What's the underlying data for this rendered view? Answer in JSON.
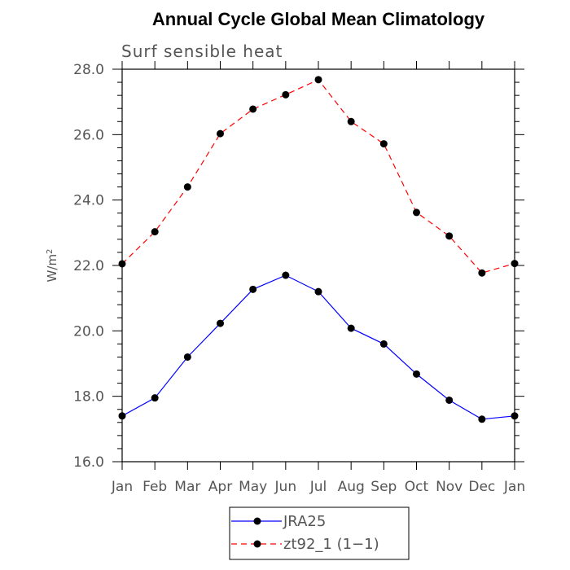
{
  "chart_data": {
    "type": "line",
    "title": "Annual Cycle Global Mean Climatology",
    "subtitle": "Surf sensible heat",
    "xlabel": "",
    "ylabel": "W/m",
    "ylabel_superscript": "2",
    "categories": [
      "Jan",
      "Feb",
      "Mar",
      "Apr",
      "May",
      "Jun",
      "Jul",
      "Aug",
      "Sep",
      "Oct",
      "Nov",
      "Dec",
      "Jan"
    ],
    "ylim": [
      16.0,
      28.0
    ],
    "y_ticks": [
      "16.0",
      "18.0",
      "20.0",
      "22.0",
      "24.0",
      "26.0",
      "28.0"
    ],
    "y_tick_values": [
      16,
      18,
      20,
      22,
      24,
      26,
      28
    ],
    "y_minor_step": 0.4,
    "grid": false,
    "legend_position": "bottom-center",
    "series": [
      {
        "name": "JRA25",
        "color": "#0000ff",
        "dash": "solid",
        "values": [
          17.4,
          17.95,
          19.2,
          20.23,
          21.27,
          21.7,
          21.2,
          20.08,
          19.6,
          18.68,
          17.88,
          17.3,
          17.4
        ]
      },
      {
        "name": "zt92_1 (1−1)",
        "color": "#ff0000",
        "dash": "dashed",
        "values": [
          22.05,
          23.03,
          24.4,
          26.03,
          26.78,
          27.22,
          27.68,
          26.4,
          25.72,
          23.62,
          22.9,
          21.77,
          22.06
        ]
      }
    ]
  }
}
